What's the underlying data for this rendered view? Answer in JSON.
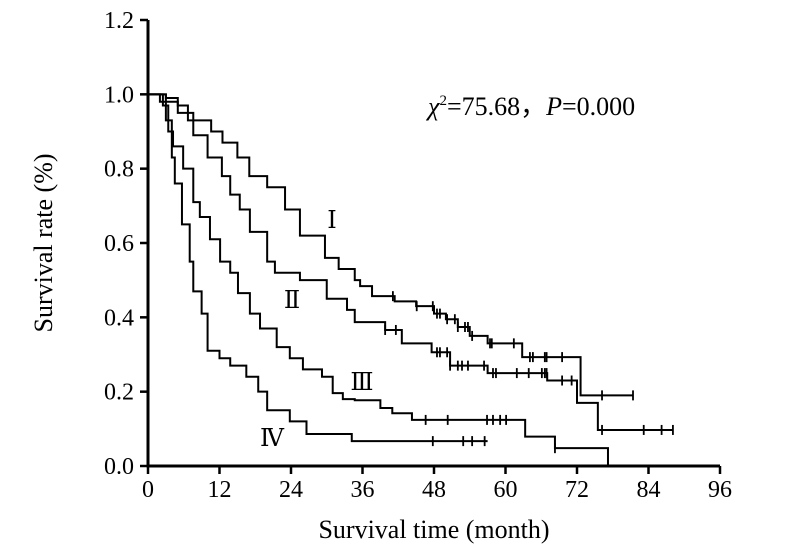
{
  "chart_data": {
    "type": "line",
    "subtype": "kaplan-meier",
    "xlabel": "Survival time (month)",
    "ylabel": "Survival rate (%)",
    "xlim": [
      0,
      96
    ],
    "ylim": [
      0,
      1.2
    ],
    "xticks": [
      "0",
      "12",
      "24",
      "36",
      "48",
      "60",
      "72",
      "84",
      "96"
    ],
    "yticks": [
      "0.0",
      "0.2",
      "0.4",
      "0.6",
      "0.8",
      "1.0",
      "1.2"
    ],
    "annotation": {
      "chi_symbol": "χ",
      "chi_sup": "2",
      "chi_value": "=75.68，",
      "p_label": "P",
      "p_value": "=0.000"
    },
    "grid": false,
    "series": [
      {
        "name": "Ⅰ",
        "steps": [
          [
            0,
            1.0
          ],
          [
            3,
            0.99
          ],
          [
            5,
            0.97
          ],
          [
            6.7,
            0.93
          ],
          [
            10.6,
            0.9
          ],
          [
            12.5,
            0.87
          ],
          [
            15,
            0.83
          ],
          [
            17,
            0.78
          ],
          [
            20,
            0.75
          ],
          [
            23,
            0.69
          ],
          [
            25.5,
            0.62
          ],
          [
            29.7,
            0.56
          ],
          [
            32,
            0.53
          ],
          [
            34.7,
            0.5
          ],
          [
            35.6,
            0.484
          ],
          [
            37.6,
            0.457
          ],
          [
            41.4,
            0.443
          ],
          [
            45,
            0.43
          ],
          [
            48,
            0.41
          ],
          [
            50,
            0.395
          ],
          [
            52,
            0.374
          ],
          [
            54,
            0.35
          ],
          [
            57,
            0.33
          ],
          [
            62.8,
            0.293
          ],
          [
            72.6,
            0.19
          ]
        ],
        "end": 81.4,
        "censored": [
          41.1,
          45.1,
          47.8,
          48.5,
          49,
          50.2,
          51.5,
          52,
          53.2,
          53.7,
          54.4,
          57.4,
          57.7,
          61.4,
          64.1,
          64.6,
          66.6,
          66.9,
          69.5,
          76.2,
          81.4
        ]
      },
      {
        "name": "Ⅱ",
        "steps": [
          [
            0,
            1.0
          ],
          [
            3,
            0.98
          ],
          [
            5,
            0.95
          ],
          [
            7.6,
            0.89
          ],
          [
            10,
            0.83
          ],
          [
            12.4,
            0.78
          ],
          [
            13.8,
            0.73
          ],
          [
            15.4,
            0.69
          ],
          [
            17.1,
            0.63
          ],
          [
            20,
            0.55
          ],
          [
            21.3,
            0.52
          ],
          [
            25.5,
            0.5
          ],
          [
            30,
            0.45
          ],
          [
            33.4,
            0.42
          ],
          [
            34.7,
            0.387
          ],
          [
            39.8,
            0.366
          ],
          [
            42.6,
            0.33
          ],
          [
            47.6,
            0.306
          ],
          [
            50.7,
            0.27
          ],
          [
            57,
            0.25
          ],
          [
            67,
            0.23
          ],
          [
            72,
            0.17
          ],
          [
            75.5,
            0.097
          ]
        ],
        "end": 88.1,
        "censored": [
          39.8,
          41.6,
          48.5,
          49,
          50.2,
          50.7,
          52,
          52.7,
          53.7,
          56.4,
          57.9,
          58.4,
          61.9,
          63.9,
          66.1,
          66.6,
          66.9,
          69.5,
          71.1,
          76.2,
          83.2,
          86.2,
          88.1
        ]
      },
      {
        "name": "Ⅲ",
        "steps": [
          [
            0,
            1.0
          ],
          [
            2.5,
            0.97
          ],
          [
            3.4,
            0.9
          ],
          [
            4.2,
            0.86
          ],
          [
            5.9,
            0.8
          ],
          [
            7.6,
            0.71
          ],
          [
            8.7,
            0.67
          ],
          [
            10.4,
            0.61
          ],
          [
            12.1,
            0.55
          ],
          [
            13.8,
            0.52
          ],
          [
            15.1,
            0.465
          ],
          [
            17.1,
            0.41
          ],
          [
            18.8,
            0.37
          ],
          [
            21.6,
            0.32
          ],
          [
            23.8,
            0.29
          ],
          [
            26,
            0.26
          ],
          [
            29.2,
            0.24
          ],
          [
            31,
            0.196
          ],
          [
            32.7,
            0.18
          ],
          [
            34.7,
            0.177
          ],
          [
            39,
            0.156
          ],
          [
            41,
            0.142
          ],
          [
            44.3,
            0.124
          ],
          [
            63.3,
            0.079
          ],
          [
            68.3,
            0.048
          ],
          [
            77.2,
            0.0
          ]
        ],
        "end": 82.5,
        "censored": [
          46.6,
          50.3,
          56.9,
          57.9,
          59.1,
          60.1,
          68.3
        ]
      },
      {
        "name": "Ⅳ",
        "steps": [
          [
            0,
            1.0
          ],
          [
            2,
            0.98
          ],
          [
            3,
            0.93
          ],
          [
            4,
            0.83
          ],
          [
            4.5,
            0.76
          ],
          [
            5.7,
            0.65
          ],
          [
            7,
            0.55
          ],
          [
            7.6,
            0.47
          ],
          [
            9,
            0.41
          ],
          [
            10,
            0.31
          ],
          [
            12,
            0.29
          ],
          [
            13.8,
            0.27
          ],
          [
            16.5,
            0.24
          ],
          [
            18.5,
            0.2
          ],
          [
            20,
            0.15
          ],
          [
            23.8,
            0.12
          ],
          [
            26.6,
            0.086
          ],
          [
            34.2,
            0.067
          ]
        ],
        "end": 57,
        "censored": [
          47.8,
          52.9,
          54.4,
          56.5
        ]
      }
    ]
  }
}
